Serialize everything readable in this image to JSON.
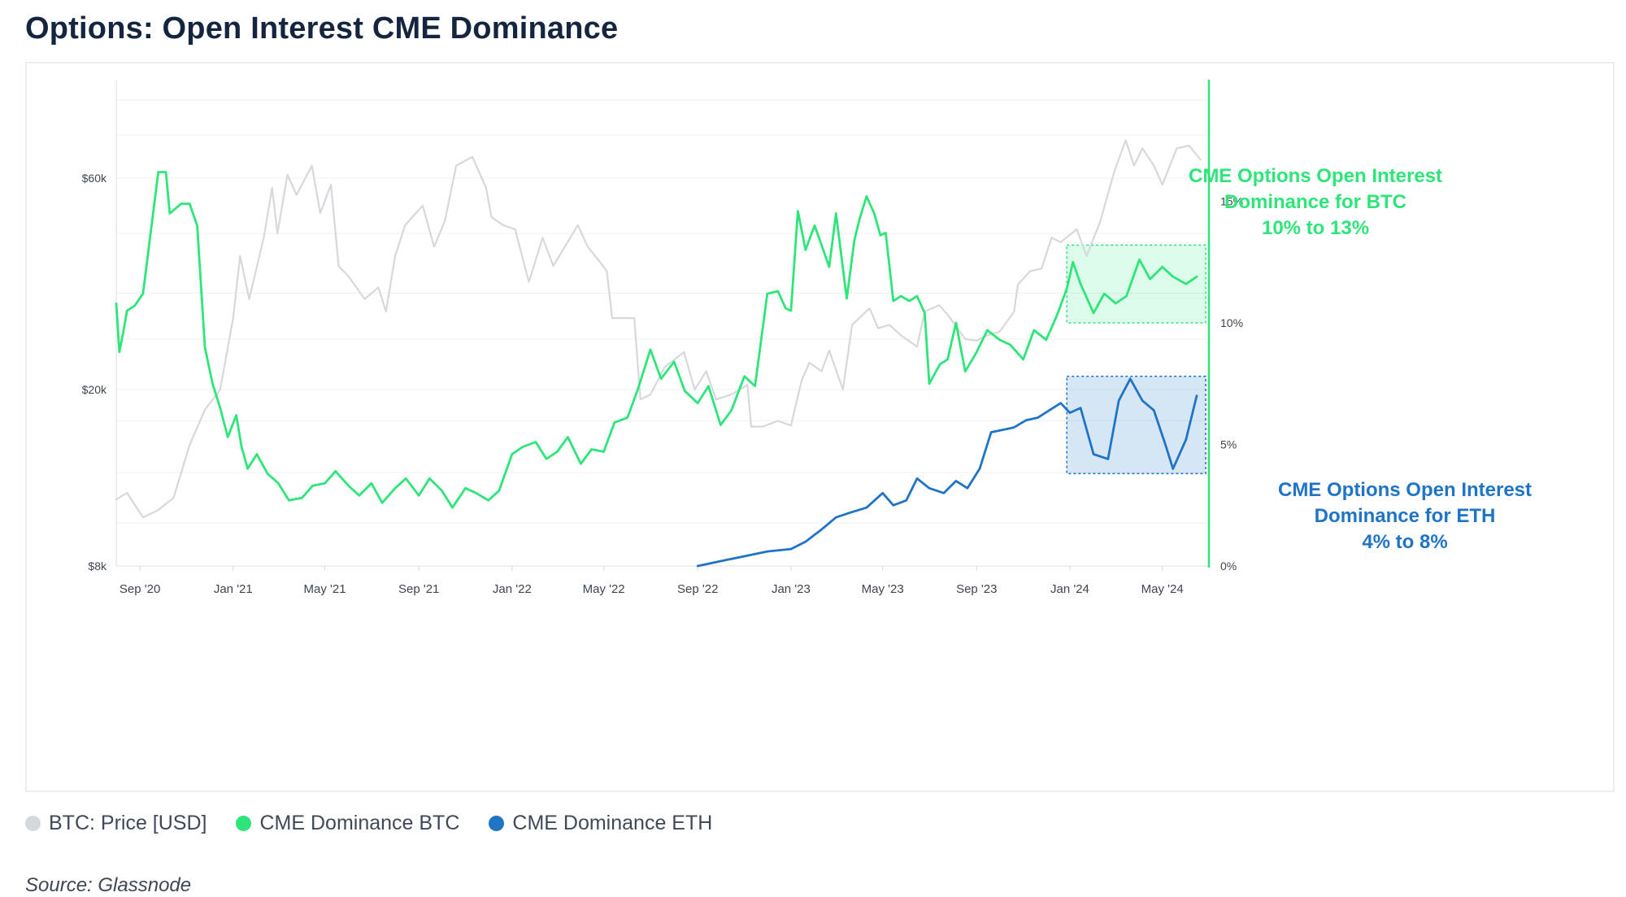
{
  "page": {
    "title": "Options: Open Interest CME Dominance",
    "source": "Source: Glassnode"
  },
  "legend": [
    {
      "label": "BTC: Price [USD]",
      "color": "#d5d8dc"
    },
    {
      "label": "CME Dominance BTC",
      "color": "#2ee57a"
    },
    {
      "label": "CME Dominance ETH",
      "color": "#1f74c6"
    }
  ],
  "annotations": {
    "btc": {
      "lines": [
        "CME Options Open Interest",
        "Dominance for BTC",
        "10% to 13%"
      ],
      "color": "#2ee57a"
    },
    "eth": {
      "lines": [
        "CME Options Open Interest",
        "Dominance for ETH",
        "4% to 8%"
      ],
      "color": "#1f74c6"
    }
  },
  "chart_data": {
    "type": "line",
    "x_ticks": [
      "Sep '20",
      "Jan '21",
      "May '21",
      "Sep '21",
      "Jan '22",
      "May '22",
      "Sep '22",
      "Jan '23",
      "May '23",
      "Sep '23",
      "Jan '24",
      "May '24"
    ],
    "y_left": {
      "ticks": [
        "$8k",
        "$20k",
        "$60k"
      ],
      "scale": "log",
      "range": [
        8000,
        100000
      ]
    },
    "y_right": {
      "ticks": [
        "0%",
        "5%",
        "10%",
        "15%"
      ],
      "range": [
        0,
        20
      ]
    },
    "grid": true,
    "legend_position": "bottom-left",
    "series": [
      {
        "name": "BTC: Price [USD]",
        "axis": "left",
        "color": "#d5d8dc",
        "x": [
          "2020-08-01",
          "2020-08-15",
          "2020-09-05",
          "2020-09-25",
          "2020-10-15",
          "2020-11-05",
          "2020-11-25",
          "2020-12-15",
          "2021-01-01",
          "2021-01-10",
          "2021-01-22",
          "2021-02-10",
          "2021-02-21",
          "2021-02-28",
          "2021-03-13",
          "2021-03-25",
          "2021-04-14",
          "2021-04-25",
          "2021-05-09",
          "2021-05-19",
          "2021-06-01",
          "2021-06-22",
          "2021-07-10",
          "2021-07-20",
          "2021-08-01",
          "2021-08-14",
          "2021-09-06",
          "2021-09-21",
          "2021-10-05",
          "2021-10-20",
          "2021-11-10",
          "2021-11-28",
          "2021-12-05",
          "2021-12-20",
          "2022-01-05",
          "2022-01-23",
          "2022-02-10",
          "2022-02-24",
          "2022-03-28",
          "2022-04-10",
          "2022-04-25",
          "2022-05-05",
          "2022-05-12",
          "2022-05-25",
          "2022-06-10",
          "2022-06-18",
          "2022-07-01",
          "2022-07-20",
          "2022-08-14",
          "2022-08-28",
          "2022-09-12",
          "2022-09-25",
          "2022-10-15",
          "2022-11-05",
          "2022-11-10",
          "2022-11-25",
          "2022-12-15",
          "2023-01-01",
          "2023-01-15",
          "2023-01-25",
          "2023-02-10",
          "2023-02-20",
          "2023-03-10",
          "2023-03-22",
          "2023-04-14",
          "2023-04-25",
          "2023-05-10",
          "2023-05-25",
          "2023-06-15",
          "2023-06-25",
          "2023-07-14",
          "2023-07-25",
          "2023-08-17",
          "2023-09-01",
          "2023-09-15",
          "2023-10-01",
          "2023-10-20",
          "2023-10-25",
          "2023-11-10",
          "2023-11-25",
          "2023-12-08",
          "2023-12-20",
          "2024-01-10",
          "2024-01-23",
          "2024-02-10",
          "2024-02-28",
          "2024-03-14",
          "2024-03-25",
          "2024-04-05",
          "2024-04-20",
          "2024-05-01",
          "2024-05-20",
          "2024-06-05",
          "2024-06-20"
        ],
        "values": [
          11300,
          11700,
          10300,
          10700,
          11400,
          15000,
          18000,
          20000,
          29000,
          40000,
          32000,
          44000,
          57000,
          45000,
          61000,
          55000,
          64000,
          50000,
          58000,
          38000,
          36000,
          32000,
          34000,
          30000,
          40000,
          47000,
          52000,
          42000,
          48000,
          64000,
          67000,
          57000,
          49000,
          47000,
          46000,
          35000,
          44000,
          38000,
          47000,
          42000,
          39000,
          37000,
          29000,
          29000,
          29000,
          19000,
          19500,
          22500,
          24300,
          20000,
          22000,
          19000,
          19500,
          20500,
          16500,
          16500,
          17000,
          16600,
          21000,
          23000,
          22000,
          24500,
          20000,
          28000,
          30500,
          27500,
          28000,
          26500,
          25000,
          30000,
          31000,
          29500,
          26000,
          25800,
          26500,
          27000,
          30000,
          34500,
          37000,
          37500,
          44000,
          43000,
          46000,
          40000,
          48000,
          62000,
          73000,
          64000,
          70000,
          64000,
          58000,
          70000,
          71000,
          66000
        ]
      },
      {
        "name": "CME Dominance BTC",
        "axis": "right",
        "color": "#2ee57a",
        "x": [
          "2020-08-01",
          "2020-08-05",
          "2020-08-10",
          "2020-08-15",
          "2020-08-25",
          "2020-09-05",
          "2020-09-25",
          "2020-10-05",
          "2020-10-10",
          "2020-10-25",
          "2020-11-05",
          "2020-11-15",
          "2020-11-25",
          "2020-12-05",
          "2020-12-15",
          "2020-12-25",
          "2021-01-05",
          "2021-01-12",
          "2021-01-20",
          "2021-02-01",
          "2021-02-15",
          "2021-03-01",
          "2021-03-15",
          "2021-04-01",
          "2021-04-15",
          "2021-05-01",
          "2021-05-15",
          "2021-06-01",
          "2021-06-15",
          "2021-07-01",
          "2021-07-15",
          "2021-08-01",
          "2021-08-15",
          "2021-09-01",
          "2021-09-15",
          "2021-10-01",
          "2021-10-15",
          "2021-11-01",
          "2021-11-15",
          "2021-12-01",
          "2021-12-15",
          "2022-01-01",
          "2022-01-15",
          "2022-02-01",
          "2022-02-15",
          "2022-03-01",
          "2022-03-15",
          "2022-04-01",
          "2022-04-15",
          "2022-05-01",
          "2022-05-15",
          "2022-06-01",
          "2022-06-15",
          "2022-07-01",
          "2022-07-15",
          "2022-08-01",
          "2022-08-15",
          "2022-09-01",
          "2022-09-15",
          "2022-10-01",
          "2022-10-15",
          "2022-11-01",
          "2022-11-15",
          "2022-12-01",
          "2022-12-15",
          "2022-12-25",
          "2023-01-01",
          "2023-01-10",
          "2023-01-20",
          "2023-02-01",
          "2023-02-10",
          "2023-02-20",
          "2023-03-01",
          "2023-03-15",
          "2023-03-25",
          "2023-04-01",
          "2023-04-10",
          "2023-04-20",
          "2023-04-28",
          "2023-05-05",
          "2023-05-15",
          "2023-05-25",
          "2023-06-05",
          "2023-06-15",
          "2023-06-25",
          "2023-07-01",
          "2023-07-15",
          "2023-07-25",
          "2023-08-05",
          "2023-08-17",
          "2023-09-01",
          "2023-09-15",
          "2023-10-01",
          "2023-10-15",
          "2023-11-01",
          "2023-11-15",
          "2023-12-01",
          "2023-12-15",
          "2023-12-28",
          "2024-01-05",
          "2024-01-15",
          "2024-02-01",
          "2024-02-15",
          "2024-03-01",
          "2024-03-15",
          "2024-04-01",
          "2024-04-15",
          "2024-05-01",
          "2024-05-15",
          "2024-06-01",
          "2024-06-15"
        ],
        "values": [
          10.8,
          8.8,
          9.6,
          10.5,
          10.7,
          11.2,
          16.2,
          16.2,
          14.5,
          14.9,
          14.9,
          14.0,
          9.0,
          7.5,
          6.5,
          5.3,
          6.2,
          4.9,
          4.0,
          4.6,
          3.8,
          3.4,
          2.7,
          2.8,
          3.3,
          3.4,
          3.9,
          3.3,
          2.9,
          3.4,
          2.6,
          3.2,
          3.6,
          2.9,
          3.6,
          3.1,
          2.4,
          3.2,
          3.0,
          2.7,
          3.1,
          4.6,
          4.9,
          5.1,
          4.4,
          4.7,
          5.3,
          4.2,
          4.8,
          4.7,
          5.9,
          6.1,
          7.3,
          8.9,
          7.7,
          8.4,
          7.2,
          6.7,
          7.4,
          5.8,
          6.4,
          7.8,
          7.4,
          11.2,
          11.3,
          10.6,
          10.5,
          14.6,
          13.0,
          14.0,
          13.2,
          12.3,
          14.5,
          11.0,
          13.4,
          14.3,
          15.2,
          14.5,
          13.6,
          13.7,
          10.9,
          11.1,
          10.9,
          11.1,
          10.4,
          7.5,
          8.3,
          8.5,
          10.0,
          8.0,
          8.8,
          9.7,
          9.3,
          9.1,
          8.5,
          9.7,
          9.3,
          10.3,
          11.4,
          12.5,
          11.6,
          10.4,
          11.2,
          10.8,
          11.1,
          12.6,
          11.8,
          12.3,
          11.9,
          11.6,
          11.9
        ]
      },
      {
        "name": "CME Dominance ETH",
        "axis": "right",
        "color": "#1f74c6",
        "x": [
          "2022-09-01",
          "2022-10-01",
          "2022-11-01",
          "2022-12-01",
          "2023-01-01",
          "2023-01-20",
          "2023-02-10",
          "2023-03-01",
          "2023-03-20",
          "2023-04-10",
          "2023-05-01",
          "2023-05-15",
          "2023-06-01",
          "2023-06-15",
          "2023-07-01",
          "2023-07-20",
          "2023-08-05",
          "2023-08-20",
          "2023-09-05",
          "2023-09-20",
          "2023-10-05",
          "2023-10-20",
          "2023-11-05",
          "2023-11-20",
          "2023-12-05",
          "2023-12-20",
          "2024-01-01",
          "2024-01-15",
          "2024-02-01",
          "2024-02-20",
          "2024-03-05",
          "2024-03-20",
          "2024-04-05",
          "2024-04-20",
          "2024-05-05",
          "2024-05-15",
          "2024-06-01",
          "2024-06-15"
        ],
        "values": [
          0.0,
          0.2,
          0.4,
          0.6,
          0.7,
          1.0,
          1.5,
          2.0,
          2.2,
          2.4,
          3.0,
          2.5,
          2.7,
          3.6,
          3.2,
          3.0,
          3.5,
          3.2,
          4.0,
          5.5,
          5.6,
          5.7,
          6.0,
          6.1,
          6.4,
          6.7,
          6.3,
          6.5,
          4.6,
          4.4,
          6.8,
          7.7,
          6.8,
          6.4,
          5.0,
          4.0,
          5.2,
          7.0
        ]
      }
    ]
  }
}
